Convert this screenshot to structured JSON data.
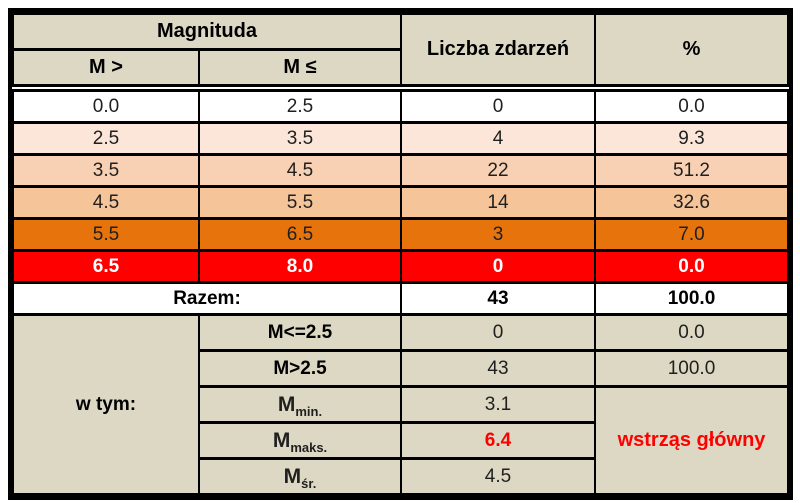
{
  "title": "Magnituda table",
  "colors": {
    "header_bg": "#DCD8C3",
    "border": "#000000",
    "accent_red": "#FF0000",
    "dark_orange": "#E7730D",
    "row_colors": [
      "#FFFFFF",
      "#FCE6D9",
      "#F8D1B4",
      "#F6C499",
      "#E7730D",
      "#FF0000"
    ]
  },
  "header": {
    "magnituda": "Magnituda",
    "m_gt": "M >",
    "m_le": "M ≤",
    "liczba": "Liczba zdarzeń",
    "percent": "%"
  },
  "rows": [
    {
      "m_gt": "0.0",
      "m_le": "2.5",
      "count": "0",
      "pct": "0.0"
    },
    {
      "m_gt": "2.5",
      "m_le": "3.5",
      "count": "4",
      "pct": "9.3"
    },
    {
      "m_gt": "3.5",
      "m_le": "4.5",
      "count": "22",
      "pct": "51.2"
    },
    {
      "m_gt": "4.5",
      "m_le": "5.5",
      "count": "14",
      "pct": "32.6"
    },
    {
      "m_gt": "5.5",
      "m_le": "6.5",
      "count": "3",
      "pct": "7.0"
    },
    {
      "m_gt": "6.5",
      "m_le": "8.0",
      "count": "0",
      "pct": "0.0"
    }
  ],
  "total": {
    "label": "Razem:",
    "count": "43",
    "pct": "100.0"
  },
  "summary": {
    "label": "w tym:",
    "items": [
      {
        "label": "M<=2.5",
        "count": "0",
        "pct": "0.0"
      },
      {
        "label": "M>2.5",
        "count": "43",
        "pct": "100.0"
      },
      {
        "label_main": "M",
        "label_sub": "min.",
        "count": "3.1"
      },
      {
        "label_main": "M",
        "label_sub": "maks.",
        "count": "6.4"
      },
      {
        "label_main": "M",
        "label_sub": "śr.",
        "count": "4.5"
      }
    ],
    "note": "wstrząs główny"
  },
  "chart_data": {
    "type": "table",
    "title": "Magnituda",
    "columns": [
      "M >",
      "M ≤",
      "Liczba zdarzeń",
      "%"
    ],
    "rows": [
      [
        0.0,
        2.5,
        0,
        0.0
      ],
      [
        2.5,
        3.5,
        4,
        9.3
      ],
      [
        3.5,
        4.5,
        22,
        51.2
      ],
      [
        4.5,
        5.5,
        14,
        32.6
      ],
      [
        5.5,
        6.5,
        3,
        7.0
      ],
      [
        6.5,
        8.0,
        0,
        0.0
      ]
    ],
    "total": {
      "label": "Razem:",
      "count": 43,
      "pct": 100.0
    },
    "summary": {
      "M<=2.5": {
        "count": 0,
        "pct": 0.0
      },
      "M>2.5": {
        "count": 43,
        "pct": 100.0
      },
      "M_min": 3.1,
      "M_maks": 6.4,
      "M_sr": 4.5,
      "note": "wstrząs główny"
    }
  }
}
